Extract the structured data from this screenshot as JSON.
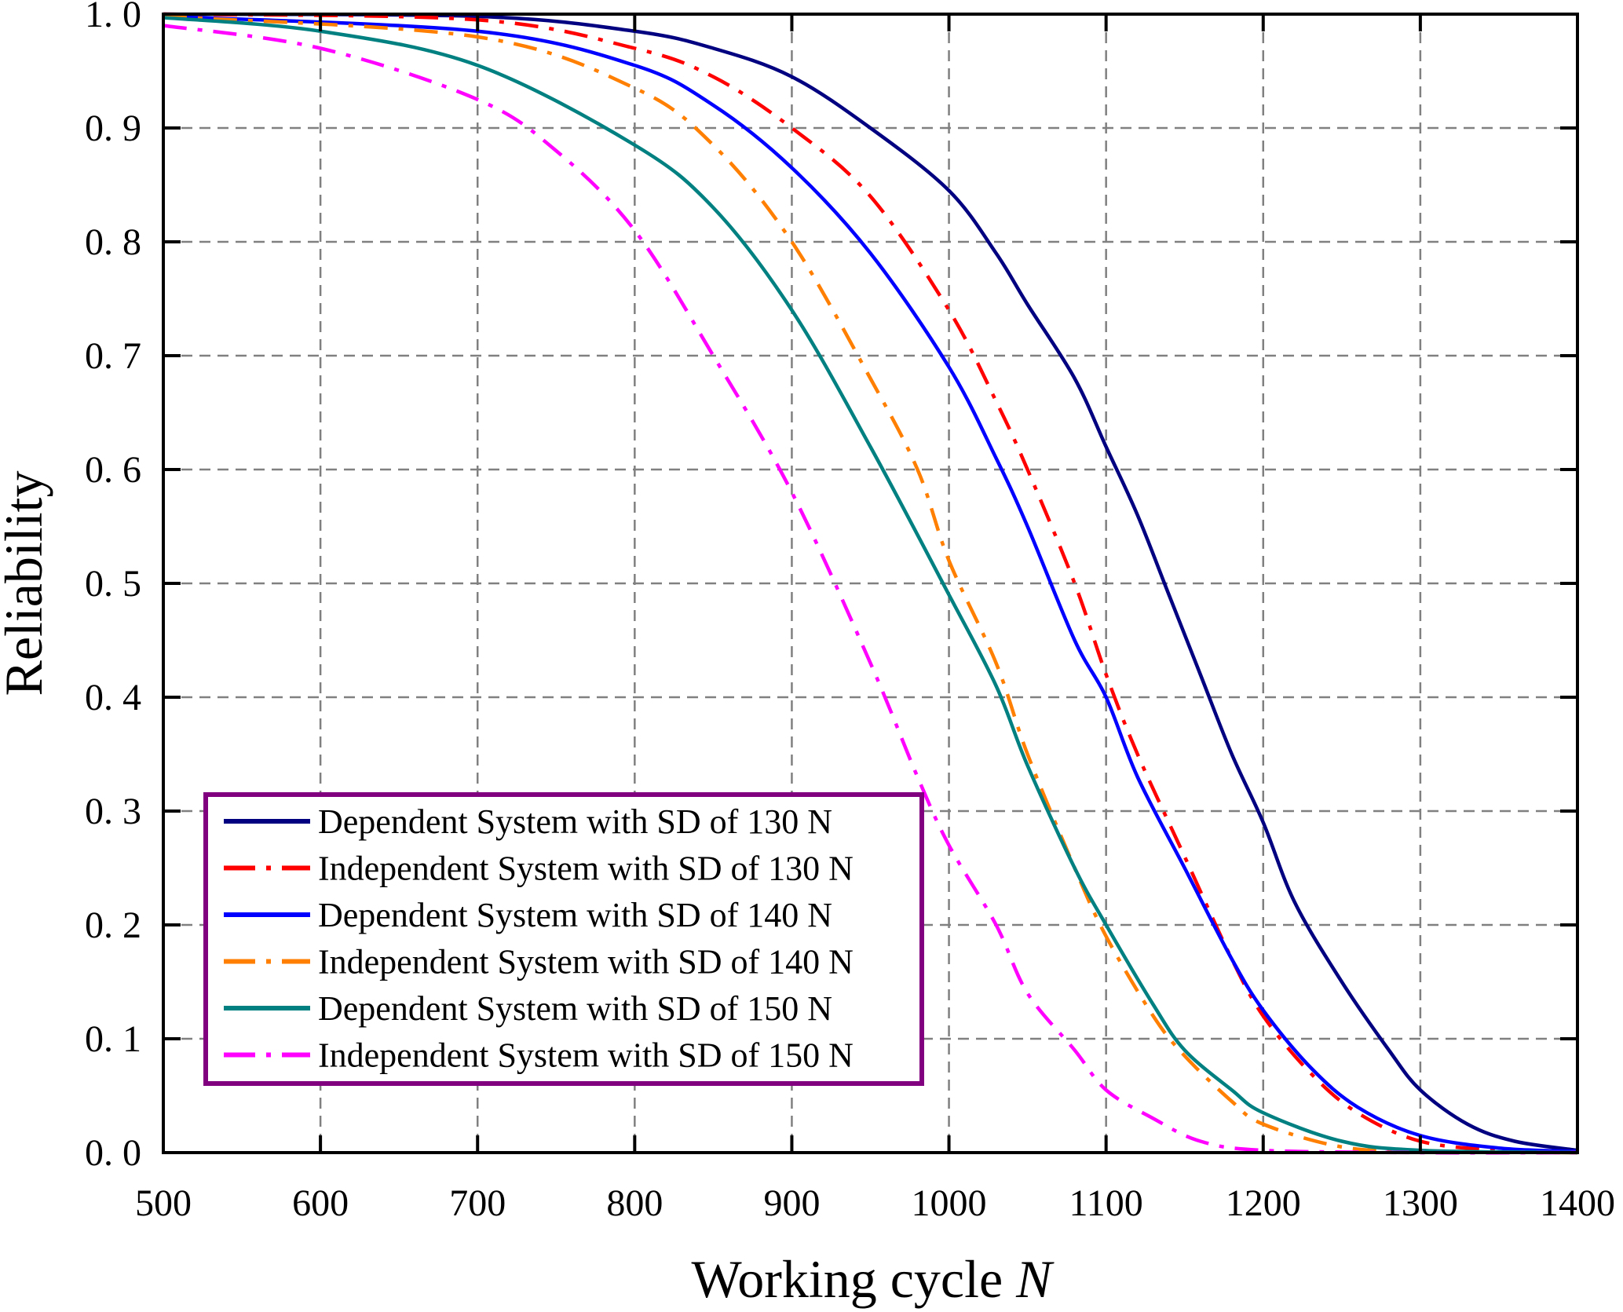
{
  "chart_data": {
    "type": "line",
    "title": "",
    "xlabel": "Working cycle",
    "xlabel_var": "N",
    "ylabel": "Reliability",
    "xlim": [
      500,
      1400
    ],
    "ylim": [
      0,
      1
    ],
    "xticks": [
      "500",
      "600",
      "700",
      "800",
      "900",
      "1000",
      "1100",
      "1200",
      "1300",
      "1400"
    ],
    "xtick_values": [
      500,
      600,
      700,
      800,
      900,
      1000,
      1100,
      1200,
      1300,
      1400
    ],
    "yticks": [
      "0. 0",
      "0. 1",
      "0. 2",
      "0. 3",
      "0. 4",
      "0. 5",
      "0. 6",
      "0. 7",
      "0. 8",
      "0. 9",
      "1. 0"
    ],
    "ytick_values": [
      0,
      0.1,
      0.2,
      0.3,
      0.4,
      0.5,
      0.6,
      0.7,
      0.8,
      0.9,
      1.0
    ],
    "grid": true,
    "legend_position": "bottom-left",
    "legend_border_color": "#800080",
    "series": [
      {
        "name": "Dependent System with SD of 130 N",
        "color": "#000080",
        "style": "solid",
        "x": [
          500,
          700,
          800,
          850,
          900,
          950,
          1000,
          1030,
          1050,
          1080,
          1100,
          1120,
          1140,
          1160,
          1180,
          1200,
          1220,
          1250,
          1280,
          1300,
          1330,
          1360,
          1400
        ],
        "y": [
          1.0,
          0.998,
          0.985,
          0.97,
          0.945,
          0.9,
          0.845,
          0.79,
          0.745,
          0.68,
          0.62,
          0.56,
          0.49,
          0.42,
          0.35,
          0.29,
          0.22,
          0.15,
          0.09,
          0.055,
          0.025,
          0.01,
          0.002
        ]
      },
      {
        "name": "Independent System with SD of 130 N",
        "color": "#ff0000",
        "style": "dashdot",
        "x": [
          500,
          700,
          800,
          850,
          900,
          950,
          1000,
          1030,
          1050,
          1080,
          1100,
          1120,
          1150,
          1180,
          1200,
          1230,
          1260,
          1300,
          1350,
          1400
        ],
        "y": [
          1.0,
          0.995,
          0.97,
          0.945,
          0.9,
          0.84,
          0.74,
          0.66,
          0.6,
          0.5,
          0.42,
          0.35,
          0.26,
          0.17,
          0.12,
          0.07,
          0.035,
          0.01,
          0.002,
          0.0
        ]
      },
      {
        "name": "Dependent System with SD of 140 N",
        "color": "#0000ff",
        "style": "solid",
        "x": [
          500,
          700,
          800,
          850,
          900,
          950,
          1000,
          1030,
          1050,
          1080,
          1100,
          1120,
          1150,
          1180,
          1200,
          1230,
          1260,
          1300,
          1350,
          1400
        ],
        "y": [
          0.998,
          0.985,
          0.955,
          0.92,
          0.865,
          0.79,
          0.69,
          0.61,
          0.55,
          0.45,
          0.4,
          0.33,
          0.25,
          0.17,
          0.125,
          0.075,
          0.04,
          0.015,
          0.004,
          0.001
        ]
      },
      {
        "name": "Independent System with SD of 140 N",
        "color": "#ff7f00",
        "style": "dashdot",
        "x": [
          500,
          700,
          800,
          850,
          900,
          950,
          980,
          1000,
          1030,
          1050,
          1080,
          1100,
          1130,
          1150,
          1180,
          1200,
          1250,
          1300,
          1400
        ],
        "y": [
          0.998,
          0.98,
          0.935,
          0.885,
          0.8,
          0.68,
          0.6,
          0.52,
          0.43,
          0.35,
          0.25,
          0.19,
          0.12,
          0.085,
          0.045,
          0.025,
          0.005,
          0.001,
          0.0
        ]
      },
      {
        "name": "Dependent System with SD of 150 N",
        "color": "#008080",
        "style": "solid",
        "x": [
          500,
          600,
          700,
          800,
          850,
          900,
          950,
          1000,
          1030,
          1050,
          1080,
          1100,
          1130,
          1150,
          1180,
          1200,
          1250,
          1300,
          1400
        ],
        "y": [
          0.997,
          0.985,
          0.955,
          0.885,
          0.83,
          0.74,
          0.62,
          0.49,
          0.41,
          0.34,
          0.25,
          0.2,
          0.13,
          0.09,
          0.055,
          0.035,
          0.01,
          0.002,
          0.0
        ]
      },
      {
        "name": "Independent System with SD of 150 N",
        "color": "#ff00ff",
        "style": "dashdot",
        "x": [
          500,
          600,
          700,
          750,
          800,
          850,
          900,
          950,
          980,
          1000,
          1030,
          1050,
          1080,
          1100,
          1130,
          1160,
          1200,
          1300,
          1400
        ],
        "y": [
          0.99,
          0.97,
          0.925,
          0.88,
          0.81,
          0.7,
          0.58,
          0.43,
          0.33,
          0.27,
          0.2,
          0.14,
          0.09,
          0.055,
          0.03,
          0.01,
          0.002,
          0.0,
          0.0
        ]
      }
    ]
  }
}
